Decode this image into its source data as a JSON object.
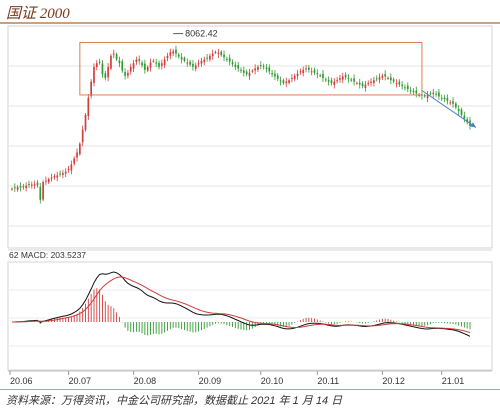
{
  "title": "国证 2000",
  "source": "资料来源：万得资讯，中金公司研究部，数据截止 2021 年 1 月 14 日",
  "colors": {
    "up": "#d23b3b",
    "down": "#2e9a2e",
    "box": "#d9804a",
    "arrow": "#4a7fd0",
    "macd": "#111111",
    "signal": "#d23b3b"
  },
  "chart_data": [
    {
      "type": "candlestick",
      "title": "",
      "xlabel": "",
      "ylabel": "",
      "x_ticks": [
        "20.06",
        "20.07",
        "20.08",
        "20.09",
        "20.10",
        "20.11",
        "20.12",
        "21.01"
      ],
      "annotations": [
        {
          "text": "8062.42",
          "kind": "high-marker"
        },
        {
          "text": "",
          "kind": "consolidation-box"
        },
        {
          "text": "",
          "kind": "down-arrow"
        }
      ],
      "close_profile": [
        6150,
        6160,
        6170,
        6165,
        6180,
        6190,
        6200,
        6205,
        6210,
        6195,
        6000,
        6240,
        6260,
        6280,
        6300,
        6320,
        6330,
        6350,
        6360,
        6380,
        6420,
        6480,
        6560,
        6640,
        6760,
        6950,
        7150,
        7380,
        7600,
        7800,
        7850,
        7870,
        7700,
        7650,
        7800,
        7950,
        7980,
        7900,
        7850,
        7750,
        7680,
        7720,
        7800,
        7850,
        7900,
        7880,
        7820,
        7760,
        7800,
        7860,
        7880,
        7850,
        7800,
        7850,
        7900,
        7950,
        8000,
        8010,
        7980,
        7940,
        7900,
        7880,
        7860,
        7830,
        7800,
        7820,
        7850,
        7880,
        7900,
        7920,
        7950,
        7980,
        8000,
        7990,
        7960,
        7930,
        7900,
        7870,
        7840,
        7800,
        7780,
        7750,
        7720,
        7700,
        7720,
        7750,
        7780,
        7800,
        7820,
        7800,
        7770,
        7740,
        7700,
        7670,
        7640,
        7600,
        7580,
        7600,
        7620,
        7650,
        7680,
        7710,
        7740,
        7760,
        7780,
        7760,
        7740,
        7720,
        7700,
        7680,
        7650,
        7620,
        7600,
        7580,
        7600,
        7620,
        7650,
        7670,
        7660,
        7640,
        7620,
        7600,
        7580,
        7560,
        7540,
        7560,
        7580,
        7600,
        7620,
        7640,
        7660,
        7680,
        7670,
        7650,
        7620,
        7600,
        7580,
        7560,
        7540,
        7520,
        7500,
        7480,
        7460,
        7440,
        7420,
        7410,
        7400,
        7420,
        7440,
        7450,
        7430,
        7400,
        7380,
        7360,
        7340,
        7320,
        7300,
        7250,
        7200,
        7150,
        7100,
        7050,
        7000
      ]
    },
    {
      "type": "macd",
      "legend": "62 MACD: 203.5237",
      "x_ticks": [
        "20.06",
        "20.07",
        "20.08",
        "20.09",
        "20.10",
        "20.11",
        "20.12",
        "21.01"
      ]
    }
  ]
}
